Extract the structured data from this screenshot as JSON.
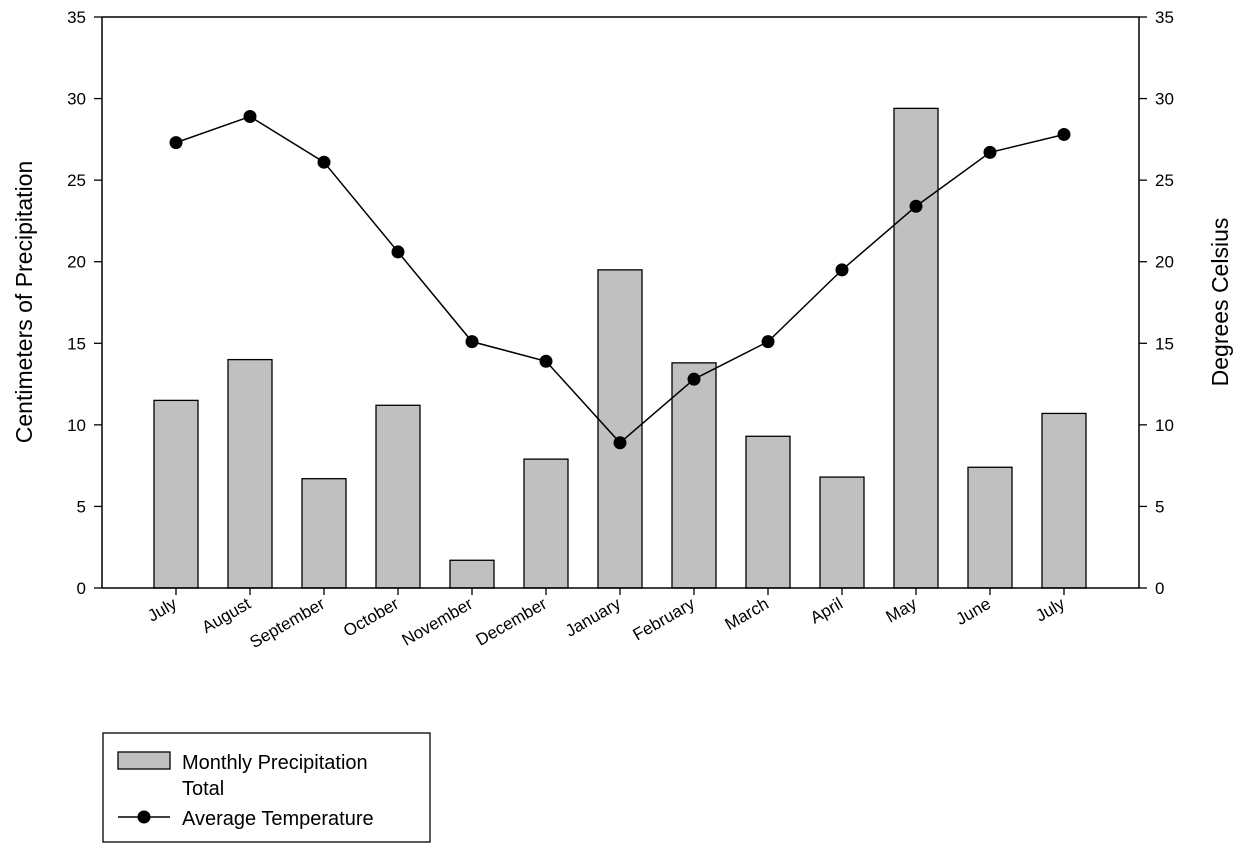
{
  "chart_data": {
    "type": "bar+line",
    "categories": [
      "July",
      "August",
      "September",
      "October",
      "November",
      "December",
      "January",
      "February",
      "March",
      "April",
      "May",
      "June",
      "July"
    ],
    "series": [
      {
        "name": "Monthly Precipitation Total",
        "type": "bar",
        "axis": "left",
        "values": [
          11.5,
          14.0,
          6.7,
          11.2,
          1.7,
          7.9,
          19.5,
          13.8,
          9.3,
          6.8,
          29.4,
          7.4,
          10.7
        ]
      },
      {
        "name": "Average Temperature",
        "type": "line",
        "axis": "right",
        "values": [
          27.3,
          28.9,
          26.1,
          20.6,
          15.1,
          13.9,
          8.9,
          12.8,
          15.1,
          19.5,
          23.4,
          26.7,
          27.8
        ]
      }
    ],
    "ylabel_left": "Centimeters of Precipitation",
    "ylabel_right": "Degrees Celsius",
    "ylim_left": [
      0,
      35
    ],
    "ylim_right": [
      0,
      35
    ],
    "yticks_left": [
      "0",
      "5",
      "10",
      "15",
      "20",
      "25",
      "30",
      "35"
    ],
    "yticks_right": [
      "0",
      "5",
      "10",
      "15",
      "20",
      "25",
      "30",
      "35"
    ],
    "grid": false,
    "legend_position": "bottom-left",
    "colors": {
      "bar_fill": "#c0c0c0",
      "bar_stroke": "#000000",
      "line": "#000000",
      "marker": "#000000"
    },
    "legend_labels": {
      "bar_line1": "Monthly Precipitation",
      "bar_line2": "Total",
      "line": "Average Temperature"
    }
  }
}
